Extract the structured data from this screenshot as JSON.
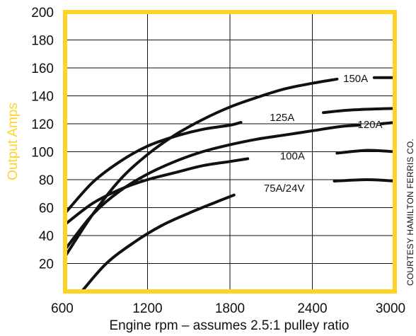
{
  "chart_data": {
    "type": "line",
    "title": "",
    "xlabel": "Engine rpm – assumes 2.5:1 pulley ratio",
    "ylabel": "Output Amps",
    "xlim": [
      600,
      3000
    ],
    "ylim": [
      0,
      200
    ],
    "x_ticks": [
      600,
      1200,
      1800,
      2400,
      3000
    ],
    "y_ticks": [
      20,
      40,
      60,
      80,
      100,
      120,
      140,
      160,
      180,
      200
    ],
    "grid": true,
    "credit": "COURTESY HAMILTON FERRIS CO.",
    "series": [
      {
        "name": "150A",
        "points": [
          [
            600,
            25
          ],
          [
            800,
            55
          ],
          [
            1000,
            80
          ],
          [
            1200,
            98
          ],
          [
            1400,
            112
          ],
          [
            1600,
            123
          ],
          [
            1800,
            132
          ],
          [
            2000,
            139
          ],
          [
            2200,
            145
          ],
          [
            2400,
            149
          ],
          [
            2580,
            152
          ]
        ],
        "tail": [
          [
            2850,
            153
          ],
          [
            3000,
            153
          ]
        ]
      },
      {
        "name": "125A",
        "points": [
          [
            600,
            56
          ],
          [
            800,
            78
          ],
          [
            1000,
            93
          ],
          [
            1200,
            104
          ],
          [
            1400,
            111
          ],
          [
            1600,
            116
          ],
          [
            1800,
            119
          ],
          [
            1880,
            121
          ]
        ],
        "tail": [
          [
            2480,
            128
          ],
          [
            2700,
            130
          ],
          [
            3000,
            131
          ]
        ]
      },
      {
        "name": "120A",
        "points": [
          [
            600,
            30
          ],
          [
            800,
            55
          ],
          [
            1000,
            72
          ],
          [
            1200,
            84
          ],
          [
            1400,
            93
          ],
          [
            1600,
            100
          ],
          [
            1800,
            105
          ],
          [
            2000,
            109
          ],
          [
            2200,
            112
          ],
          [
            2400,
            115
          ],
          [
            2600,
            118
          ],
          [
            2740,
            119
          ]
        ],
        "tail": [
          [
            2900,
            120
          ],
          [
            3000,
            121
          ]
        ]
      },
      {
        "name": "100A",
        "points": [
          [
            600,
            48
          ],
          [
            800,
            63
          ],
          [
            1000,
            73
          ],
          [
            1200,
            80
          ],
          [
            1400,
            85
          ],
          [
            1600,
            90
          ],
          [
            1800,
            93
          ],
          [
            1930,
            95
          ]
        ],
        "tail": [
          [
            2580,
            99
          ],
          [
            2800,
            101
          ],
          [
            3000,
            100
          ]
        ]
      },
      {
        "name": "75A/24V",
        "points": [
          [
            730,
            1
          ],
          [
            900,
            20
          ],
          [
            1100,
            35
          ],
          [
            1300,
            47
          ],
          [
            1500,
            56
          ],
          [
            1700,
            64
          ],
          [
            1830,
            69
          ]
        ],
        "tail": [
          [
            2560,
            79
          ],
          [
            2800,
            80
          ],
          [
            3000,
            79
          ]
        ]
      }
    ],
    "colors": {
      "frame": "#ffd326",
      "grid": "#111111",
      "curve": "#111111",
      "ylabel": "#ffd326"
    }
  }
}
